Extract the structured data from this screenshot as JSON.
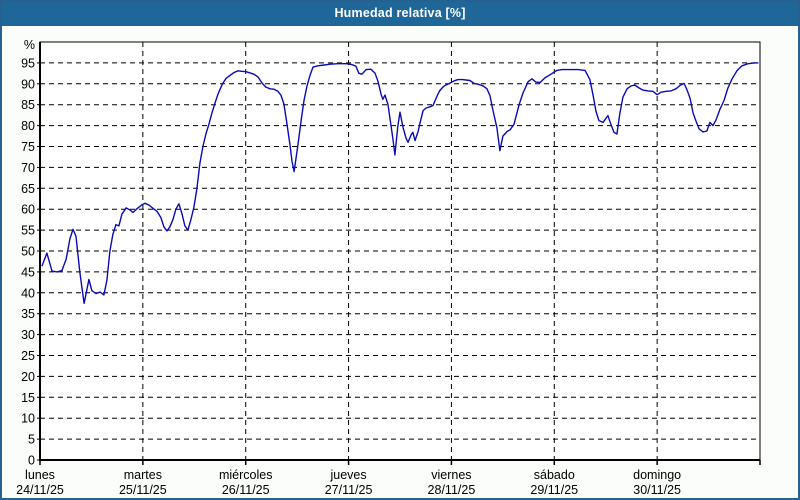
{
  "window": {
    "title": "Humedad relativa [%]"
  },
  "colors": {
    "frame": "#27618f",
    "titlebar_bg": "#1f6699",
    "titlebar_text": "#ffffff",
    "page_bg": "#fbfdfa",
    "plot_bg": "#ffffff",
    "grid": "#000000",
    "axis": "#000000",
    "line": "#0a0ab8",
    "label_text": "#000000"
  },
  "chart_data": {
    "type": "line",
    "title": "Humedad relativa [%]",
    "ylabel": "%",
    "xlabel": "",
    "ylim": [
      0,
      100
    ],
    "xlim_hours": [
      0,
      168
    ],
    "grid": "dashed",
    "legend": "none",
    "y_ticks": [
      0,
      5,
      10,
      15,
      20,
      25,
      30,
      35,
      40,
      45,
      50,
      55,
      60,
      65,
      70,
      75,
      80,
      85,
      90,
      95
    ],
    "y_unit_label": "%",
    "x_categories": [
      {
        "day": "lunes",
        "date": "24/11/25"
      },
      {
        "day": "martes",
        "date": "25/11/25"
      },
      {
        "day": "miércoles",
        "date": "26/11/25"
      },
      {
        "day": "jueves",
        "date": "27/11/25"
      },
      {
        "day": "viernes",
        "date": "28/11/25"
      },
      {
        "day": "sábado",
        "date": "29/11/25"
      },
      {
        "day": "domingo",
        "date": "30/11/25"
      }
    ],
    "series": [
      {
        "name": "Humedad relativa",
        "color": "#0a0ab8",
        "x_unit": "hours_from_monday_00",
        "points": [
          [
            0.5,
            46.5
          ],
          [
            1.6,
            49.5
          ],
          [
            2.8,
            45.2
          ],
          [
            4,
            45
          ],
          [
            5.1,
            45.3
          ],
          [
            6.1,
            48
          ],
          [
            7,
            53
          ],
          [
            7.7,
            55.2
          ],
          [
            8.4,
            53.5
          ],
          [
            9.3,
            44.8
          ],
          [
            10.3,
            37.5
          ],
          [
            11,
            41
          ],
          [
            11.4,
            43.2
          ],
          [
            12.1,
            40.5
          ],
          [
            13.1,
            39.8
          ],
          [
            14,
            40.2
          ],
          [
            14.9,
            39.5
          ],
          [
            15.6,
            43
          ],
          [
            16.3,
            50
          ],
          [
            17,
            54
          ],
          [
            17.7,
            56.3
          ],
          [
            18.4,
            56
          ],
          [
            19.1,
            58.8
          ],
          [
            20.1,
            60.3
          ],
          [
            21,
            59.8
          ],
          [
            21.7,
            59.2
          ],
          [
            22.6,
            60.1
          ],
          [
            23.6,
            60.9
          ],
          [
            24.5,
            61.4
          ],
          [
            25.4,
            61
          ],
          [
            26.4,
            60.2
          ],
          [
            27.3,
            59.5
          ],
          [
            28.2,
            58
          ],
          [
            28.9,
            55.8
          ],
          [
            29.6,
            54.8
          ],
          [
            30.3,
            55.8
          ],
          [
            31,
            57.5
          ],
          [
            31.7,
            60
          ],
          [
            32.4,
            61.3
          ],
          [
            33.1,
            59
          ],
          [
            33.8,
            56
          ],
          [
            34.5,
            55
          ],
          [
            35.2,
            57.5
          ],
          [
            35.9,
            60.5
          ],
          [
            36.6,
            64.9
          ],
          [
            37.3,
            71
          ],
          [
            38,
            75
          ],
          [
            38.7,
            78
          ],
          [
            39.4,
            80.3
          ],
          [
            40.1,
            83
          ],
          [
            40.8,
            85.3
          ],
          [
            41.5,
            87.5
          ],
          [
            42.5,
            89.8
          ],
          [
            43.4,
            91.3
          ],
          [
            44.3,
            92
          ],
          [
            45.3,
            92.7
          ],
          [
            46.2,
            93.1
          ],
          [
            47.1,
            93
          ],
          [
            48.1,
            92.9
          ],
          [
            49,
            92.6
          ],
          [
            49.9,
            92.3
          ],
          [
            50.9,
            91.6
          ],
          [
            51.8,
            90.2
          ],
          [
            52.7,
            89.2
          ],
          [
            53.7,
            88.8
          ],
          [
            54.6,
            88.7
          ],
          [
            55.5,
            88.2
          ],
          [
            56.2,
            87.3
          ],
          [
            56.9,
            85.2
          ],
          [
            57.6,
            80.5
          ],
          [
            58.3,
            75.5
          ],
          [
            58.8,
            71.5
          ],
          [
            59.3,
            69
          ],
          [
            59.7,
            72
          ],
          [
            60.2,
            75.5
          ],
          [
            60.9,
            81
          ],
          [
            61.6,
            86
          ],
          [
            62.3,
            89.5
          ],
          [
            63,
            92
          ],
          [
            63.7,
            94
          ],
          [
            64.9,
            94.3
          ],
          [
            66.3,
            94.5
          ],
          [
            67.7,
            94.7
          ],
          [
            69.5,
            94.8
          ],
          [
            71.4,
            94.8
          ],
          [
            72.8,
            94.6
          ],
          [
            73.7,
            94.2
          ],
          [
            74.4,
            92.5
          ],
          [
            75.1,
            92.3
          ],
          [
            76.1,
            93.4
          ],
          [
            77.2,
            93.5
          ],
          [
            78.2,
            92.5
          ],
          [
            78.9,
            90.5
          ],
          [
            79.6,
            87.5
          ],
          [
            80,
            86.3
          ],
          [
            80.5,
            87.3
          ],
          [
            81.2,
            85
          ],
          [
            81.7,
            81.5
          ],
          [
            82.4,
            76.5
          ],
          [
            82.8,
            73
          ],
          [
            83.5,
            80
          ],
          [
            84,
            83.2
          ],
          [
            84.7,
            79.6
          ],
          [
            85.4,
            77
          ],
          [
            85.9,
            76
          ],
          [
            86.6,
            77.8
          ],
          [
            87,
            78.4
          ],
          [
            87.5,
            76.4
          ],
          [
            88.2,
            78.5
          ],
          [
            88.7,
            80.7
          ],
          [
            89.4,
            83.6
          ],
          [
            90.1,
            84.2
          ],
          [
            91,
            84.5
          ],
          [
            91.7,
            84.8
          ],
          [
            92.2,
            86
          ],
          [
            92.9,
            87.6
          ],
          [
            93.3,
            88.4
          ],
          [
            94,
            89.2
          ],
          [
            94.5,
            89.6
          ],
          [
            95.7,
            90.2
          ],
          [
            96.6,
            90.7
          ],
          [
            97.5,
            91
          ],
          [
            98.5,
            91
          ],
          [
            99.4,
            90.9
          ],
          [
            100.3,
            90.8
          ],
          [
            101.3,
            90.1
          ],
          [
            102.2,
            89.9
          ],
          [
            103.4,
            89.5
          ],
          [
            104.3,
            88.8
          ],
          [
            105,
            87.1
          ],
          [
            105.7,
            83.6
          ],
          [
            106.6,
            79.5
          ],
          [
            107.3,
            74
          ],
          [
            108,
            77.5
          ],
          [
            109,
            78.6
          ],
          [
            109.7,
            79
          ],
          [
            110.6,
            80.3
          ],
          [
            111.8,
            85
          ],
          [
            112.7,
            87.8
          ],
          [
            113.9,
            90.5
          ],
          [
            114.8,
            91.2
          ],
          [
            115.7,
            90.4
          ],
          [
            116.7,
            90.3
          ],
          [
            117.8,
            91.4
          ],
          [
            119.2,
            92.3
          ],
          [
            120.6,
            93.2
          ],
          [
            121.8,
            93.4
          ],
          [
            123.7,
            93.4
          ],
          [
            125.5,
            93.4
          ],
          [
            127.2,
            93.2
          ],
          [
            128.3,
            91
          ],
          [
            129,
            87.5
          ],
          [
            129.7,
            83.5
          ],
          [
            130.4,
            81.2
          ],
          [
            131.4,
            80.8
          ],
          [
            132.1,
            81.8
          ],
          [
            132.5,
            82.4
          ],
          [
            133.2,
            80.3
          ],
          [
            133.9,
            78.4
          ],
          [
            134.6,
            78
          ],
          [
            135.3,
            83
          ],
          [
            136,
            86.8
          ],
          [
            137,
            88.8
          ],
          [
            137.9,
            89.5
          ],
          [
            138.8,
            89.7
          ],
          [
            139.8,
            89
          ],
          [
            140.7,
            88.5
          ],
          [
            141.9,
            88.3
          ],
          [
            143,
            88.2
          ],
          [
            144,
            87.4
          ],
          [
            144.9,
            88
          ],
          [
            146.1,
            88.2
          ],
          [
            147.2,
            88.3
          ],
          [
            148.4,
            88.8
          ],
          [
            149.3,
            89.6
          ],
          [
            150.3,
            90.1
          ],
          [
            151,
            88.5
          ],
          [
            151.7,
            86.5
          ],
          [
            152.4,
            83
          ],
          [
            153.1,
            81
          ],
          [
            153.8,
            79.2
          ],
          [
            154.7,
            78.5
          ],
          [
            155.6,
            78.7
          ],
          [
            156.3,
            80.8
          ],
          [
            157,
            80
          ],
          [
            157.7,
            81.3
          ],
          [
            158.7,
            84
          ],
          [
            159.6,
            86
          ],
          [
            160.5,
            89
          ],
          [
            161.5,
            91.2
          ],
          [
            162.6,
            93.1
          ],
          [
            163.8,
            94.3
          ],
          [
            165.2,
            94.8
          ],
          [
            166.8,
            95
          ],
          [
            167.5,
            95
          ]
        ]
      }
    ]
  }
}
